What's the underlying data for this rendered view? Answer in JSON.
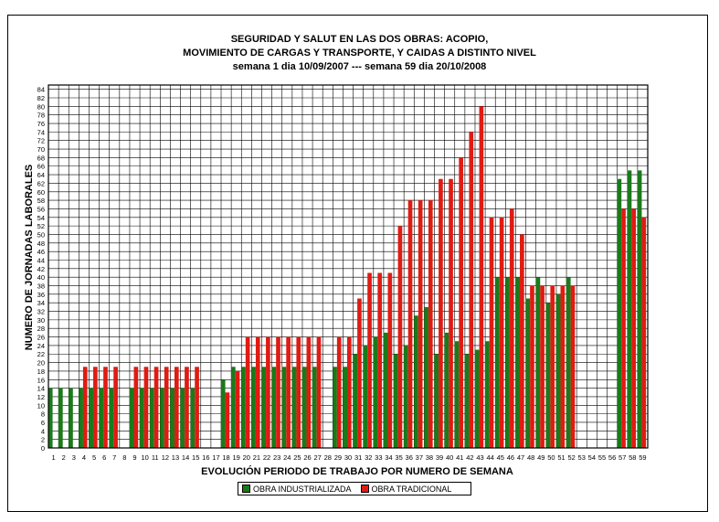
{
  "chart_data": {
    "type": "bar",
    "title_lines": [
      "SEGURIDAD Y SALUT EN LAS DOS OBRAS: ACOPIO,",
      "MOVIMIENTO DE CARGAS Y TRANSPORTE, Y CAIDAS A DISTINTO NIVEL",
      "semana 1 dia 10/09/2007 --- semana 59 dia 20/10/2008"
    ],
    "xlabel": "EVOLUCIÓN PERIODO DE TRABAJO POR NUMERO DE SEMANA",
    "ylabel": "NUMERO DE JORNADAS LABORALES",
    "ylim": [
      0,
      85
    ],
    "ytick_step": 2,
    "grid": true,
    "legend_position": "bottom-center",
    "categories": [
      "1",
      "2",
      "3",
      "4",
      "5",
      "6",
      "7",
      "8",
      "9",
      "10",
      "11",
      "12",
      "13",
      "14",
      "15",
      "16",
      "17",
      "18",
      "19",
      "20",
      "21",
      "22",
      "23",
      "24",
      "25",
      "26",
      "27",
      "28",
      "29",
      "30",
      "31",
      "32",
      "33",
      "34",
      "35",
      "36",
      "37",
      "38",
      "39",
      "40",
      "41",
      "42",
      "43",
      "44",
      "45",
      "46",
      "47",
      "48",
      "49",
      "50",
      "51",
      "52",
      "53",
      "54",
      "55",
      "56",
      "57",
      "58",
      "59"
    ],
    "series": [
      {
        "name": "OBRA INDUSTRIALIZADA",
        "color": "#1a7a1a",
        "values": [
          14,
          14,
          14,
          14,
          14,
          14,
          14,
          0,
          14,
          14,
          14,
          14,
          14,
          14,
          14,
          0,
          0,
          16,
          19,
          19,
          19,
          19,
          19,
          19,
          19,
          19,
          19,
          0,
          19,
          19,
          22,
          24,
          26,
          27,
          22,
          24,
          31,
          33,
          22,
          27,
          25,
          22,
          23,
          25,
          40,
          40,
          40,
          35,
          40,
          34,
          36,
          40,
          0,
          0,
          0,
          0,
          63,
          65,
          65
        ]
      },
      {
        "name": "OBRA TRADICIONAL",
        "color": "#e01b12",
        "values": [
          0,
          0,
          0,
          19,
          19,
          19,
          19,
          0,
          19,
          19,
          19,
          19,
          19,
          19,
          19,
          0,
          0,
          13,
          18,
          26,
          26,
          26,
          26,
          26,
          26,
          26,
          26,
          0,
          26,
          26,
          35,
          41,
          41,
          41,
          52,
          58,
          58,
          58,
          63,
          63,
          68,
          74,
          80,
          54,
          54,
          56,
          50,
          38,
          38,
          38,
          38,
          38,
          0,
          0,
          0,
          0,
          56,
          56,
          54
        ]
      }
    ]
  }
}
